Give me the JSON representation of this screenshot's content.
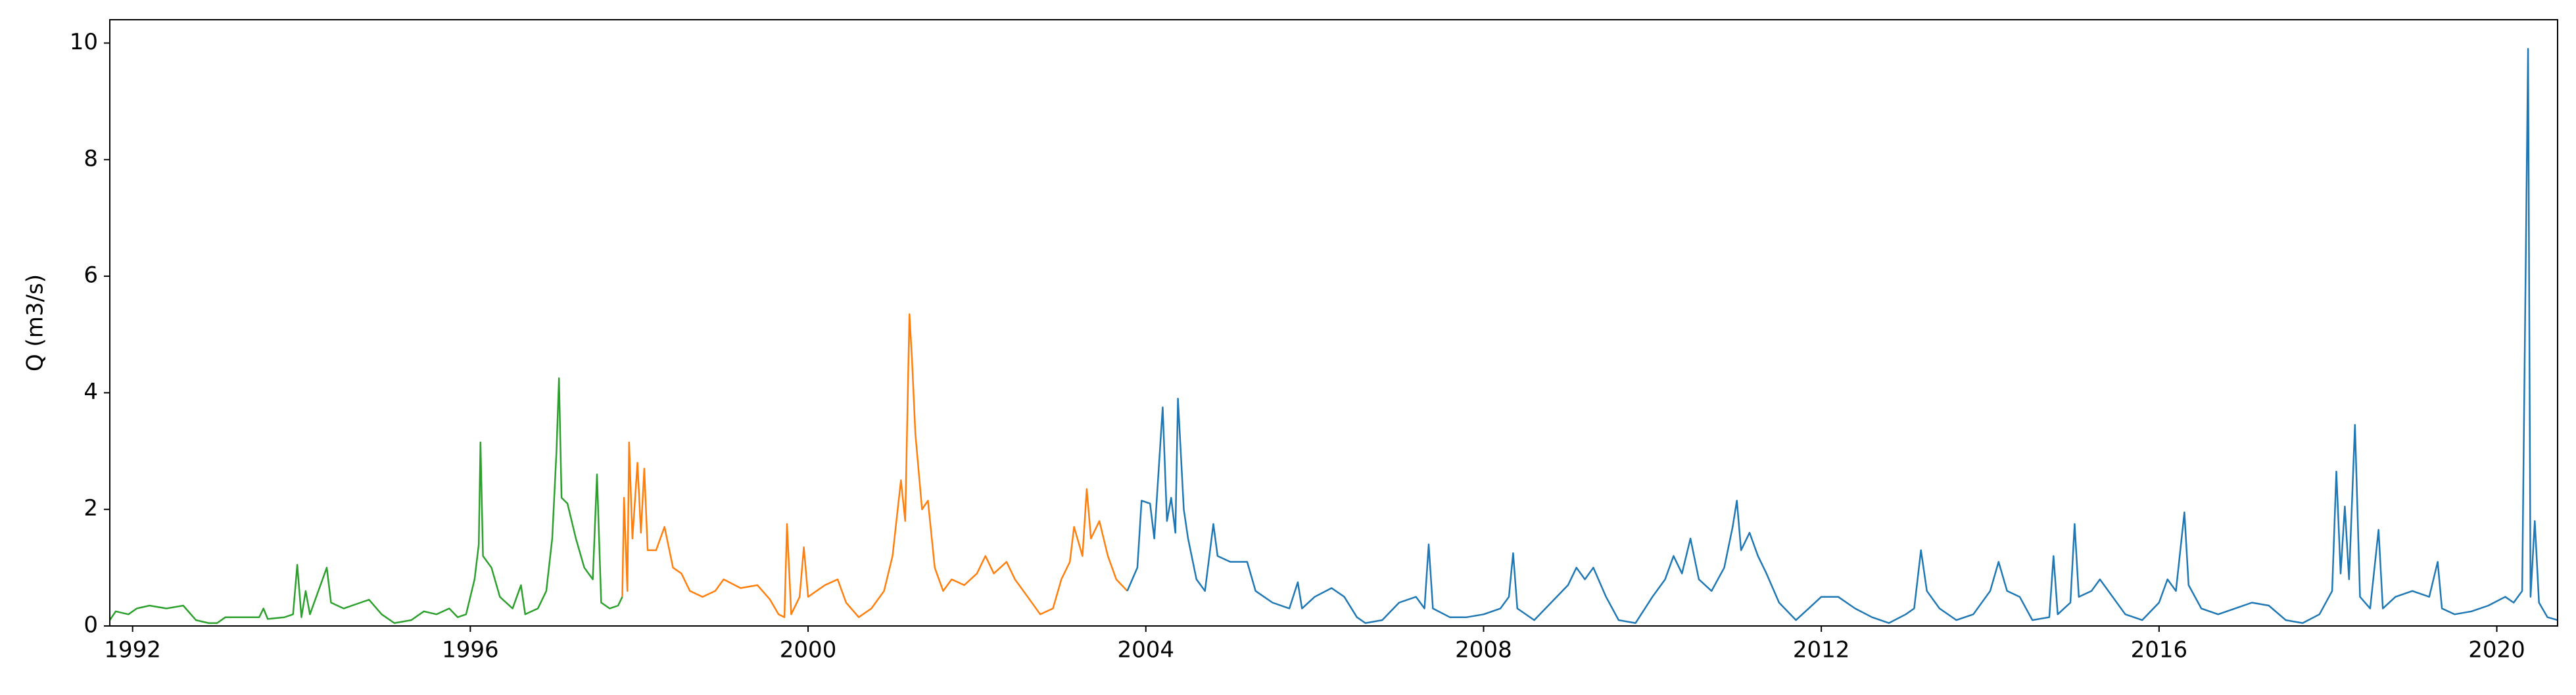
{
  "chart_data": {
    "type": "line",
    "y_label": "Q (m3/s)",
    "xlim": [
      1991.73,
      2020.72
    ],
    "ylim": [
      0,
      10.4
    ],
    "xticks": [
      1992,
      1996,
      2000,
      2004,
      2008,
      2012,
      2016,
      2020
    ],
    "yticks": [
      0,
      2,
      4,
      6,
      8,
      10
    ],
    "grid": false,
    "series": [
      {
        "color": "#2ca02c",
        "x": [
          1991.73,
          1991.8,
          1991.95,
          1992.05,
          1992.2,
          1992.4,
          1992.6,
          1992.75,
          1992.9,
          1993.0,
          1993.1,
          1993.3,
          1993.5,
          1993.55,
          1993.6,
          1993.8,
          1993.9,
          1993.95,
          1994.0,
          1994.05,
          1994.1,
          1994.3,
          1994.35,
          1994.5,
          1994.7,
          1994.8,
          1994.95,
          1995.1,
          1995.3,
          1995.45,
          1995.6,
          1995.75,
          1995.85,
          1995.95,
          1996.05,
          1996.1,
          1996.12,
          1996.15,
          1996.25,
          1996.35,
          1996.5,
          1996.6,
          1996.65,
          1996.8,
          1996.9,
          1996.97,
          1997.02,
          1997.05,
          1997.08,
          1997.15,
          1997.25,
          1997.35,
          1997.45,
          1997.5,
          1997.55,
          1997.65,
          1997.75,
          1997.8
        ],
        "values": [
          0.1,
          0.25,
          0.2,
          0.3,
          0.35,
          0.3,
          0.35,
          0.1,
          0.05,
          0.05,
          0.15,
          0.15,
          0.15,
          0.3,
          0.12,
          0.15,
          0.2,
          1.05,
          0.15,
          0.6,
          0.2,
          1.0,
          0.4,
          0.3,
          0.4,
          0.45,
          0.2,
          0.05,
          0.1,
          0.25,
          0.2,
          0.3,
          0.15,
          0.2,
          0.8,
          1.4,
          3.15,
          1.2,
          1.0,
          0.5,
          0.3,
          0.7,
          0.2,
          0.3,
          0.6,
          1.5,
          3.0,
          4.25,
          2.2,
          2.1,
          1.5,
          1.0,
          0.8,
          2.6,
          0.4,
          0.3,
          0.35,
          0.5
        ]
      },
      {
        "color": "#ff7f0e",
        "x": [
          1997.8,
          1997.82,
          1997.86,
          1997.88,
          1997.92,
          1997.98,
          1998.02,
          1998.06,
          1998.1,
          1998.2,
          1998.3,
          1998.4,
          1998.5,
          1998.6,
          1998.75,
          1998.9,
          1999.0,
          1999.2,
          1999.4,
          1999.55,
          1999.65,
          1999.72,
          1999.75,
          1999.8,
          1999.9,
          1999.95,
          2000.0,
          2000.2,
          2000.35,
          2000.45,
          2000.6,
          2000.75,
          2000.9,
          2001.0,
          2001.1,
          2001.15,
          2001.2,
          2001.23,
          2001.27,
          2001.35,
          2001.42,
          2001.5,
          2001.6,
          2001.7,
          2001.85,
          2002.0,
          2002.1,
          2002.2,
          2002.35,
          2002.45,
          2002.6,
          2002.75,
          2002.9,
          2003.0,
          2003.1,
          2003.15,
          2003.25,
          2003.3,
          2003.35,
          2003.45,
          2003.55,
          2003.65,
          2003.78
        ],
        "values": [
          0.5,
          2.2,
          0.6,
          3.15,
          1.5,
          2.8,
          1.6,
          2.7,
          1.3,
          1.3,
          1.7,
          1.0,
          0.9,
          0.6,
          0.5,
          0.6,
          0.8,
          0.65,
          0.7,
          0.45,
          0.2,
          0.15,
          1.75,
          0.2,
          0.5,
          1.35,
          0.5,
          0.7,
          0.8,
          0.4,
          0.15,
          0.3,
          0.6,
          1.2,
          2.5,
          1.8,
          5.35,
          4.6,
          3.3,
          2.0,
          2.15,
          1.0,
          0.6,
          0.8,
          0.7,
          0.9,
          1.2,
          0.9,
          1.1,
          0.8,
          0.5,
          0.2,
          0.3,
          0.8,
          1.1,
          1.7,
          1.2,
          2.35,
          1.5,
          1.8,
          1.2,
          0.8,
          0.6
        ]
      },
      {
        "color": "#1f77b4",
        "x": [
          2003.78,
          2003.9,
          2003.95,
          2004.05,
          2004.1,
          2004.2,
          2004.25,
          2004.3,
          2004.35,
          2004.38,
          2004.45,
          2004.5,
          2004.6,
          2004.7,
          2004.8,
          2004.85,
          2005.0,
          2005.2,
          2005.3,
          2005.5,
          2005.7,
          2005.8,
          2005.85,
          2006.0,
          2006.2,
          2006.35,
          2006.5,
          2006.6,
          2006.8,
          2007.0,
          2007.2,
          2007.3,
          2007.35,
          2007.4,
          2007.6,
          2007.8,
          2008.0,
          2008.2,
          2008.3,
          2008.35,
          2008.4,
          2008.6,
          2008.8,
          2009.0,
          2009.1,
          2009.2,
          2009.3,
          2009.45,
          2009.6,
          2009.8,
          2010.0,
          2010.15,
          2010.25,
          2010.35,
          2010.45,
          2010.55,
          2010.7,
          2010.85,
          2010.95,
          2011.0,
          2011.05,
          2011.15,
          2011.25,
          2011.35,
          2011.5,
          2011.7,
          2011.85,
          2012.0,
          2012.2,
          2012.4,
          2012.6,
          2012.8,
          2013.0,
          2013.1,
          2013.18,
          2013.25,
          2013.4,
          2013.6,
          2013.8,
          2014.0,
          2014.1,
          2014.2,
          2014.35,
          2014.5,
          2014.7,
          2014.75,
          2014.8,
          2014.95,
          2015.0,
          2015.05,
          2015.2,
          2015.3,
          2015.45,
          2015.6,
          2015.8,
          2016.0,
          2016.1,
          2016.2,
          2016.3,
          2016.35,
          2016.5,
          2016.7,
          2016.9,
          2017.1,
          2017.3,
          2017.5,
          2017.7,
          2017.9,
          2018.05,
          2018.1,
          2018.15,
          2018.2,
          2018.25,
          2018.32,
          2018.38,
          2018.5,
          2018.6,
          2018.65,
          2018.8,
          2019.0,
          2019.2,
          2019.3,
          2019.35,
          2019.5,
          2019.7,
          2019.9,
          2020.1,
          2020.2,
          2020.3,
          2020.37,
          2020.4,
          2020.45,
          2020.5,
          2020.6,
          2020.72
        ],
        "values": [
          0.6,
          1.0,
          2.15,
          2.1,
          1.5,
          3.75,
          1.8,
          2.2,
          1.6,
          3.9,
          2.0,
          1.5,
          0.8,
          0.6,
          1.75,
          1.2,
          1.1,
          1.1,
          0.6,
          0.4,
          0.3,
          0.75,
          0.3,
          0.5,
          0.65,
          0.5,
          0.15,
          0.05,
          0.1,
          0.4,
          0.5,
          0.3,
          1.4,
          0.3,
          0.15,
          0.15,
          0.2,
          0.3,
          0.5,
          1.25,
          0.3,
          0.1,
          0.4,
          0.7,
          1.0,
          0.8,
          1.0,
          0.5,
          0.1,
          0.05,
          0.5,
          0.8,
          1.2,
          0.9,
          1.5,
          0.8,
          0.6,
          1.0,
          1.7,
          2.15,
          1.3,
          1.6,
          1.2,
          0.9,
          0.4,
          0.1,
          0.3,
          0.5,
          0.5,
          0.3,
          0.15,
          0.05,
          0.2,
          0.3,
          1.3,
          0.6,
          0.3,
          0.1,
          0.2,
          0.6,
          1.1,
          0.6,
          0.5,
          0.1,
          0.15,
          1.2,
          0.2,
          0.4,
          1.75,
          0.5,
          0.6,
          0.8,
          0.5,
          0.2,
          0.1,
          0.4,
          0.8,
          0.6,
          1.95,
          0.7,
          0.3,
          0.2,
          0.3,
          0.4,
          0.35,
          0.1,
          0.05,
          0.2,
          0.6,
          2.65,
          0.9,
          2.05,
          0.8,
          3.45,
          0.5,
          0.3,
          1.65,
          0.3,
          0.5,
          0.6,
          0.5,
          1.1,
          0.3,
          0.2,
          0.25,
          0.35,
          0.5,
          0.4,
          0.6,
          9.9,
          0.5,
          1.8,
          0.4,
          0.15,
          0.1
        ]
      }
    ]
  }
}
